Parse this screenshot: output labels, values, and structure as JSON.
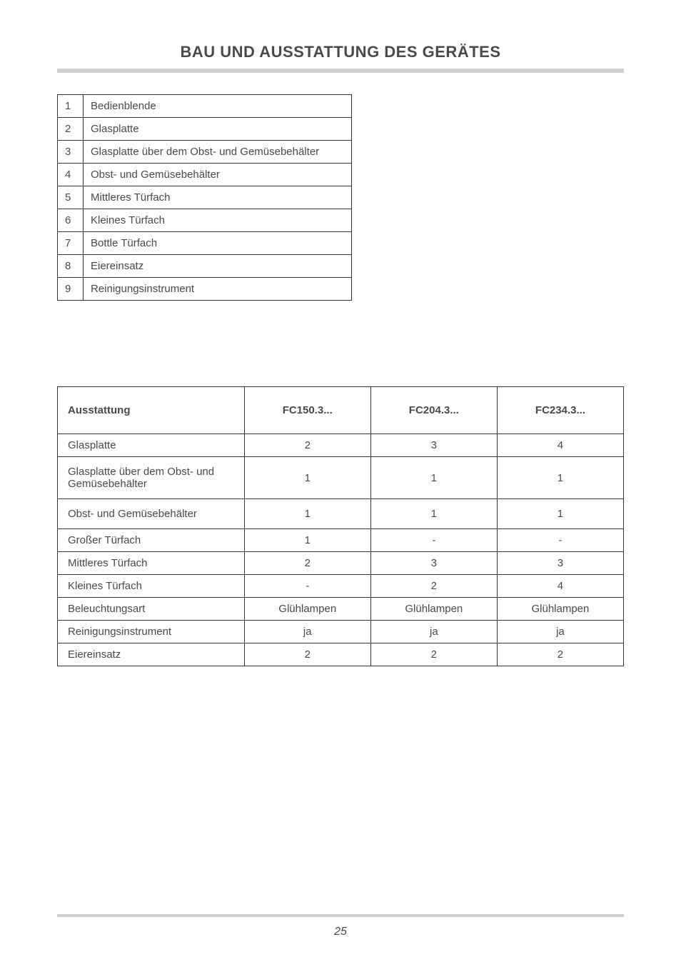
{
  "title": "BAU UND AUSSTATTUNG DES GERÄTES",
  "parts": {
    "rows": [
      {
        "n": "1",
        "label": "Bedienblende"
      },
      {
        "n": "2",
        "label": "Glasplatte"
      },
      {
        "n": "3",
        "label": "Glasplatte über dem Obst- und Gemüsebehälter"
      },
      {
        "n": "4",
        "label": "Obst- und Gemüsebehälter"
      },
      {
        "n": "5",
        "label": "Mittleres Türfach"
      },
      {
        "n": "6",
        "label": "Kleines Türfach"
      },
      {
        "n": "7",
        "label": "Bottle Türfach"
      },
      {
        "n": "8",
        "label": "Eiereinsatz"
      },
      {
        "n": "9",
        "label": "Reinigungsinstrument"
      }
    ]
  },
  "equip": {
    "head": {
      "c0": "Ausstattung",
      "c1": "FC150.3...",
      "c2": "FC204.3...",
      "c3": "FC234.3..."
    },
    "rows": [
      {
        "label": "Glasplatte",
        "c1": "2",
        "c2": "3",
        "c3": "4",
        "tall": false
      },
      {
        "label": "Glasplatte über dem Obst- und Gemüsebehälter",
        "c1": "1",
        "c2": "1",
        "c3": "1",
        "tall": true
      },
      {
        "label": "Obst- und Gemüsebehälter",
        "c1": "1",
        "c2": "1",
        "c3": "1",
        "tall": true
      },
      {
        "label": "Großer Türfach",
        "c1": "1",
        "c2": "-",
        "c3": "-",
        "tall": false
      },
      {
        "label": "Mittleres Türfach",
        "c1": "2",
        "c2": "3",
        "c3": "3",
        "tall": false
      },
      {
        "label": "Kleines Türfach",
        "c1": "-",
        "c2": "2",
        "c3": "4",
        "tall": false
      },
      {
        "label": "Beleuchtungsart",
        "c1": "Glühlampen",
        "c2": "Glühlampen",
        "c3": "Glühlampen",
        "tall": false
      },
      {
        "label": "Reinigungsinstrument",
        "c1": "ja",
        "c2": "ja",
        "c3": "ja",
        "tall": false
      },
      {
        "label": "Eiereinsatz",
        "c1": "2",
        "c2": "2",
        "c3": "2",
        "tall": false
      }
    ]
  },
  "pageNumber": "25"
}
